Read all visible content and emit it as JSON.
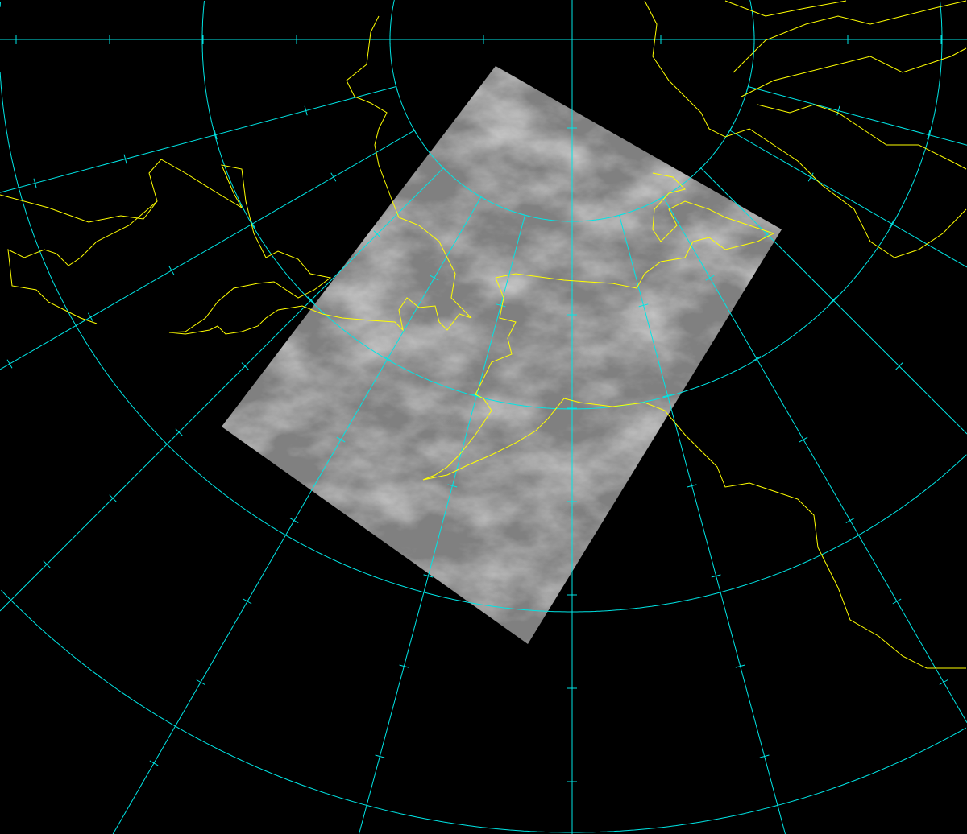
{
  "map": {
    "projection": "polar-stereographic",
    "background_color": "#000000",
    "grid_color": "#00e5e5",
    "coastline_color": "#ffff00",
    "imagery": "satellite-infrared-grayscale",
    "meridian_spacing_deg": 15
  }
}
